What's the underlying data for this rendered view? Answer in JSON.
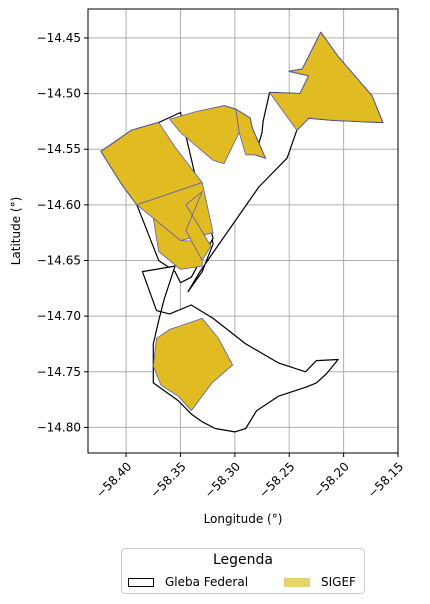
{
  "chart_data": {
    "type": "map",
    "xlabel": "Longitude (°)",
    "ylabel": "Latitude (°)",
    "xlim": [
      -58.435,
      -58.15
    ],
    "ylim": [
      -14.823,
      -14.424
    ],
    "xticks": [
      -58.4,
      -58.35,
      -58.3,
      -58.25,
      -58.2,
      -58.15
    ],
    "xtick_labels": [
      "−58.40",
      "−58.35",
      "−58.30",
      "−58.25",
      "−58.20",
      "−58.15"
    ],
    "yticks": [
      -14.45,
      -14.5,
      -14.55,
      -14.6,
      -14.65,
      -14.7,
      -14.75,
      -14.8
    ],
    "ytick_labels": [
      "−14.45",
      "−14.50",
      "−14.55",
      "−14.60",
      "−14.65",
      "−14.70",
      "−14.75",
      "−14.80"
    ],
    "grid": true,
    "colors": {
      "gleba_edge": "#000000",
      "gleba_fill": "#ffffff",
      "sigef_fill": "#e0bb22",
      "sigef_edge": "#5e5ea8",
      "grid": "#b0b0b0"
    },
    "legend": {
      "title": "Legenda",
      "placement": "bottom-center outside",
      "entries": [
        {
          "label": "Gleba Federal",
          "style": "outline"
        },
        {
          "label": "SIGEF",
          "style": "filled"
        }
      ]
    },
    "gleba_federal": [
      [
        [
          -58.377,
          -14.54
        ],
        [
          -58.36,
          -14.524
        ],
        [
          -58.337,
          -14.517
        ],
        [
          -58.31,
          -14.511
        ],
        [
          -58.299,
          -14.514
        ],
        [
          -58.286,
          -14.522
        ],
        [
          -58.284,
          -14.531
        ],
        [
          -58.272,
          -14.558
        ],
        [
          -58.281,
          -14.555
        ],
        [
          -58.275,
          -14.535
        ],
        [
          -58.274,
          -14.525
        ],
        [
          -58.268,
          -14.499
        ],
        [
          -58.24,
          -14.5
        ],
        [
          -58.232,
          -14.484
        ],
        [
          -58.25,
          -14.48
        ],
        [
          -58.238,
          -14.478
        ],
        [
          -58.221,
          -14.445
        ],
        [
          -58.205,
          -14.467
        ],
        [
          -58.174,
          -14.502
        ],
        [
          -58.164,
          -14.526
        ],
        [
          -58.21,
          -14.524
        ],
        [
          -58.232,
          -14.522
        ],
        [
          -58.243,
          -14.533
        ],
        [
          -58.252,
          -14.558
        ],
        [
          -58.278,
          -14.584
        ],
        [
          -58.3,
          -14.615
        ],
        [
          -58.318,
          -14.64
        ],
        [
          -58.332,
          -14.66
        ],
        [
          -58.343,
          -14.678
        ],
        [
          -58.33,
          -14.66
        ],
        [
          -58.32,
          -14.635
        ],
        [
          -58.33,
          -14.588
        ],
        [
          -58.345,
          -14.56
        ],
        [
          -58.362,
          -14.545
        ],
        [
          -58.377,
          -14.54
        ]
      ],
      [
        [
          -58.423,
          -14.552
        ],
        [
          -58.395,
          -14.533
        ],
        [
          -58.37,
          -14.526
        ],
        [
          -58.35,
          -14.517
        ],
        [
          -58.335,
          -14.58
        ],
        [
          -58.32,
          -14.63
        ],
        [
          -58.34,
          -14.665
        ],
        [
          -58.35,
          -14.67
        ],
        [
          -58.355,
          -14.66
        ],
        [
          -58.37,
          -14.65
        ],
        [
          -58.38,
          -14.625
        ],
        [
          -58.39,
          -14.6
        ],
        [
          -58.405,
          -14.58
        ],
        [
          -58.423,
          -14.552
        ]
      ],
      [
        [
          -58.385,
          -14.66
        ],
        [
          -58.372,
          -14.695
        ],
        [
          -58.36,
          -14.698
        ],
        [
          -58.34,
          -14.69
        ],
        [
          -58.32,
          -14.702
        ],
        [
          -58.29,
          -14.725
        ],
        [
          -58.26,
          -14.742
        ],
        [
          -58.235,
          -14.75
        ],
        [
          -58.225,
          -14.74
        ],
        [
          -58.205,
          -14.739
        ],
        [
          -58.216,
          -14.752
        ],
        [
          -58.225,
          -14.76
        ],
        [
          -58.235,
          -14.764
        ],
        [
          -58.26,
          -14.772
        ],
        [
          -58.28,
          -14.785
        ],
        [
          -58.29,
          -14.801
        ],
        [
          -58.3,
          -14.804
        ],
        [
          -58.318,
          -14.801
        ],
        [
          -58.33,
          -14.795
        ],
        [
          -58.34,
          -14.788
        ],
        [
          -58.352,
          -14.776
        ],
        [
          -58.375,
          -14.76
        ],
        [
          -58.375,
          -14.725
        ],
        [
          -58.37,
          -14.704
        ],
        [
          -58.365,
          -14.685
        ],
        [
          -58.36,
          -14.67
        ],
        [
          -58.355,
          -14.655
        ],
        [
          -58.385,
          -14.66
        ]
      ]
    ],
    "sigef": [
      [
        [
          -58.423,
          -14.552
        ],
        [
          -58.395,
          -14.533
        ],
        [
          -58.37,
          -14.526
        ],
        [
          -58.355,
          -14.548
        ],
        [
          -58.33,
          -14.58
        ],
        [
          -58.39,
          -14.6
        ],
        [
          -58.405,
          -14.58
        ],
        [
          -58.423,
          -14.552
        ]
      ],
      [
        [
          -58.39,
          -14.6
        ],
        [
          -58.33,
          -14.58
        ],
        [
          -58.32,
          -14.625
        ],
        [
          -58.35,
          -14.632
        ],
        [
          -58.375,
          -14.612
        ],
        [
          -58.39,
          -14.6
        ]
      ],
      [
        [
          -58.375,
          -14.612
        ],
        [
          -58.35,
          -14.632
        ],
        [
          -58.33,
          -14.633
        ],
        [
          -58.33,
          -14.655
        ],
        [
          -58.35,
          -14.658
        ],
        [
          -58.37,
          -14.642
        ],
        [
          -58.375,
          -14.612
        ]
      ],
      [
        [
          -58.36,
          -14.523
        ],
        [
          -58.335,
          -14.516
        ],
        [
          -58.31,
          -14.511
        ],
        [
          -58.299,
          -14.514
        ],
        [
          -58.296,
          -14.535
        ],
        [
          -58.31,
          -14.563
        ],
        [
          -58.32,
          -14.56
        ],
        [
          -58.35,
          -14.535
        ],
        [
          -58.36,
          -14.523
        ]
      ],
      [
        [
          -58.299,
          -14.514
        ],
        [
          -58.286,
          -14.522
        ],
        [
          -58.284,
          -14.531
        ],
        [
          -58.272,
          -14.558
        ],
        [
          -58.281,
          -14.555
        ],
        [
          -58.29,
          -14.555
        ],
        [
          -58.296,
          -14.535
        ],
        [
          -58.299,
          -14.514
        ]
      ],
      [
        [
          -58.268,
          -14.499
        ],
        [
          -58.24,
          -14.5
        ],
        [
          -58.232,
          -14.484
        ],
        [
          -58.25,
          -14.48
        ],
        [
          -58.238,
          -14.478
        ],
        [
          -58.221,
          -14.445
        ],
        [
          -58.205,
          -14.467
        ],
        [
          -58.174,
          -14.502
        ],
        [
          -58.164,
          -14.526
        ],
        [
          -58.21,
          -14.524
        ],
        [
          -58.232,
          -14.522
        ],
        [
          -58.243,
          -14.533
        ],
        [
          -58.268,
          -14.499
        ]
      ],
      [
        [
          -58.33,
          -14.588
        ],
        [
          -58.345,
          -14.6
        ],
        [
          -58.322,
          -14.637
        ],
        [
          -58.33,
          -14.65
        ],
        [
          -58.345,
          -14.623
        ],
        [
          -58.33,
          -14.588
        ]
      ],
      [
        [
          -58.372,
          -14.72
        ],
        [
          -58.36,
          -14.712
        ],
        [
          -58.33,
          -14.702
        ],
        [
          -58.315,
          -14.72
        ],
        [
          -58.302,
          -14.744
        ],
        [
          -58.321,
          -14.76
        ],
        [
          -58.34,
          -14.785
        ],
        [
          -58.352,
          -14.772
        ],
        [
          -58.368,
          -14.762
        ],
        [
          -58.375,
          -14.745
        ],
        [
          -58.372,
          -14.72
        ]
      ]
    ]
  }
}
